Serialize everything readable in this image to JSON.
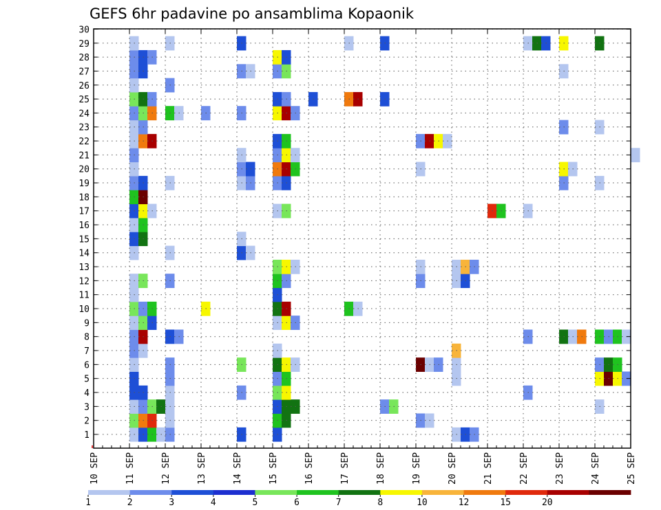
{
  "chart_data": {
    "type": "heatmap",
    "title": "GEFS 6hr padavine po ansamblima Kopaonik",
    "x_ticks": [
      "10 SEP",
      "11 SEP",
      "12 SEP",
      "13 SEP",
      "14 SEP",
      "15 SEP",
      "16 SEP",
      "17 SEP",
      "18 SEP",
      "19 SEP",
      "20 SEP",
      "21 SEP",
      "22 SEP",
      "23 SEP",
      "24 SEP",
      "25 SEP"
    ],
    "y_ticks": [
      "1",
      "2",
      "3",
      "4",
      "5",
      "6",
      "7",
      "8",
      "9",
      "10",
      "11",
      "12",
      "13",
      "14",
      "15",
      "16",
      "17",
      "18",
      "19",
      "20",
      "21",
      "22",
      "23",
      "24",
      "25",
      "26",
      "27",
      "28",
      "29",
      "30"
    ],
    "grid": true,
    "legend": {
      "placement": "bottom",
      "colors": [
        "#b4c6ef",
        "#6d8ceb",
        "#1e4fd6",
        "#1c2fd0",
        "#78e65a",
        "#1fc31f",
        "#127312",
        "#f7f700",
        "#f8b43a",
        "#f07a0e",
        "#e0290c",
        "#a80000",
        "#6b0000"
      ],
      "labels": [
        "1",
        "2",
        "3",
        "4",
        "5",
        "6",
        "7",
        "8",
        "10",
        "12",
        "15",
        "20"
      ]
    },
    "cells": [
      {
        "x": "11 SEP",
        "y": "1",
        "color": "#b4c6ef"
      },
      {
        "x": "11 SEP",
        "y": "1",
        "color": "#1e4fd6"
      },
      {
        "x": "11 SEP",
        "y": "1",
        "color": "#1fc31f"
      },
      {
        "x": "11 SEP",
        "y": "1",
        "color": "#b4c6ef"
      },
      {
        "x": "12 SEP",
        "y": "1",
        "color": "#6d8ceb"
      },
      {
        "x": "14 SEP",
        "y": "1",
        "color": "#1e4fd6"
      },
      {
        "x": "15 SEP",
        "y": "1",
        "color": "#1e4fd6"
      },
      {
        "x": "20 SEP",
        "y": "1",
        "color": "#b4c6ef"
      },
      {
        "x": "20 SEP",
        "y": "1",
        "color": "#1e4fd6"
      },
      {
        "x": "20 SEP",
        "y": "1",
        "color": "#6d8ceb"
      },
      {
        "x": "11 SEP",
        "y": "2",
        "color": "#78e65a"
      },
      {
        "x": "11 SEP",
        "y": "2",
        "color": "#f07a0e"
      },
      {
        "x": "11 SEP",
        "y": "2",
        "color": "#e0290c"
      },
      {
        "x": "12 SEP",
        "y": "2",
        "color": "#b4c6ef"
      },
      {
        "x": "15 SEP",
        "y": "2",
        "color": "#1fc31f"
      },
      {
        "x": "15 SEP",
        "y": "2",
        "color": "#127312"
      },
      {
        "x": "19 SEP",
        "y": "2",
        "color": "#6d8ceb"
      },
      {
        "x": "19 SEP",
        "y": "2",
        "color": "#b4c6ef"
      },
      {
        "x": "11 SEP",
        "y": "3",
        "color": "#b4c6ef"
      },
      {
        "x": "11 SEP",
        "y": "3",
        "color": "#6d8ceb"
      },
      {
        "x": "11 SEP",
        "y": "3",
        "color": "#78e65a"
      },
      {
        "x": "11 SEP",
        "y": "3",
        "color": "#127312"
      },
      {
        "x": "12 SEP",
        "y": "3",
        "color": "#b4c6ef"
      },
      {
        "x": "15 SEP",
        "y": "3",
        "color": "#1e4fd6"
      },
      {
        "x": "15 SEP",
        "y": "3",
        "color": "#127312"
      },
      {
        "x": "15 SEP",
        "y": "3",
        "color": "#127312"
      },
      {
        "x": "18 SEP",
        "y": "3",
        "color": "#6d8ceb"
      },
      {
        "x": "18 SEP",
        "y": "3",
        "color": "#78e65a"
      },
      {
        "x": "24 SEP",
        "y": "3",
        "color": "#b4c6ef"
      },
      {
        "x": "11 SEP",
        "y": "4",
        "color": "#1e4fd6"
      },
      {
        "x": "11 SEP",
        "y": "4",
        "color": "#1e4fd6"
      },
      {
        "x": "12 SEP",
        "y": "4",
        "color": "#b4c6ef"
      },
      {
        "x": "14 SEP",
        "y": "4",
        "color": "#6d8ceb"
      },
      {
        "x": "15 SEP",
        "y": "4",
        "color": "#78e65a"
      },
      {
        "x": "15 SEP",
        "y": "4",
        "color": "#f7f700"
      },
      {
        "x": "22 SEP",
        "y": "4",
        "color": "#6d8ceb"
      },
      {
        "x": "11 SEP",
        "y": "5",
        "color": "#1e4fd6"
      },
      {
        "x": "12 SEP",
        "y": "5",
        "color": "#6d8ceb"
      },
      {
        "x": "15 SEP",
        "y": "5",
        "color": "#6d8ceb"
      },
      {
        "x": "15 SEP",
        "y": "5",
        "color": "#1fc31f"
      },
      {
        "x": "20 SEP",
        "y": "5",
        "color": "#b4c6ef"
      },
      {
        "x": "24 SEP",
        "y": "5",
        "color": "#f7f700"
      },
      {
        "x": "24 SEP",
        "y": "5",
        "color": "#6b0000"
      },
      {
        "x": "24 SEP",
        "y": "5",
        "color": "#f7f700"
      },
      {
        "x": "24 SEP",
        "y": "5",
        "color": "#6d8ceb"
      },
      {
        "x": "11 SEP",
        "y": "6",
        "color": "#b4c6ef"
      },
      {
        "x": "12 SEP",
        "y": "6",
        "color": "#6d8ceb"
      },
      {
        "x": "14 SEP",
        "y": "6",
        "color": "#78e65a"
      },
      {
        "x": "15 SEP",
        "y": "6",
        "color": "#127312"
      },
      {
        "x": "15 SEP",
        "y": "6",
        "color": "#f7f700"
      },
      {
        "x": "15 SEP",
        "y": "6",
        "color": "#b4c6ef"
      },
      {
        "x": "19 SEP",
        "y": "6",
        "color": "#6b0000"
      },
      {
        "x": "19 SEP",
        "y": "6",
        "color": "#b4c6ef"
      },
      {
        "x": "19 SEP",
        "y": "6",
        "color": "#6d8ceb"
      },
      {
        "x": "20 SEP",
        "y": "6",
        "color": "#b4c6ef"
      },
      {
        "x": "24 SEP",
        "y": "6",
        "color": "#6d8ceb"
      },
      {
        "x": "24 SEP",
        "y": "6",
        "color": "#127312"
      },
      {
        "x": "24 SEP",
        "y": "6",
        "color": "#1fc31f"
      },
      {
        "x": "11 SEP",
        "y": "7",
        "color": "#6d8ceb"
      },
      {
        "x": "11 SEP",
        "y": "7",
        "color": "#b4c6ef"
      },
      {
        "x": "15 SEP",
        "y": "7",
        "color": "#b4c6ef"
      },
      {
        "x": "20 SEP",
        "y": "7",
        "color": "#f8b43a"
      },
      {
        "x": "11 SEP",
        "y": "8",
        "color": "#6d8ceb"
      },
      {
        "x": "11 SEP",
        "y": "8",
        "color": "#a80000"
      },
      {
        "x": "12 SEP",
        "y": "8",
        "color": "#1e4fd6"
      },
      {
        "x": "12 SEP",
        "y": "8",
        "color": "#6d8ceb"
      },
      {
        "x": "22 SEP",
        "y": "8",
        "color": "#6d8ceb"
      },
      {
        "x": "23 SEP",
        "y": "8",
        "color": "#127312"
      },
      {
        "x": "23 SEP",
        "y": "8",
        "color": "#b4c6ef"
      },
      {
        "x": "23 SEP",
        "y": "8",
        "color": "#f07a0e"
      },
      {
        "x": "24 SEP",
        "y": "8",
        "color": "#1fc31f"
      },
      {
        "x": "24 SEP",
        "y": "8",
        "color": "#6d8ceb"
      },
      {
        "x": "24 SEP",
        "y": "8",
        "color": "#1fc31f"
      },
      {
        "x": "24 SEP",
        "y": "8",
        "color": "#b4c6ef"
      },
      {
        "x": "11 SEP",
        "y": "9",
        "color": "#b4c6ef"
      },
      {
        "x": "11 SEP",
        "y": "9",
        "color": "#78e65a"
      },
      {
        "x": "11 SEP",
        "y": "9",
        "color": "#1e4fd6"
      },
      {
        "x": "15 SEP",
        "y": "9",
        "color": "#b4c6ef"
      },
      {
        "x": "15 SEP",
        "y": "9",
        "color": "#f7f700"
      },
      {
        "x": "15 SEP",
        "y": "9",
        "color": "#6d8ceb"
      },
      {
        "x": "11 SEP",
        "y": "10",
        "color": "#78e65a"
      },
      {
        "x": "11 SEP",
        "y": "10",
        "color": "#6d8ceb"
      },
      {
        "x": "11 SEP",
        "y": "10",
        "color": "#1fc31f"
      },
      {
        "x": "13 SEP",
        "y": "10",
        "color": "#f7f700"
      },
      {
        "x": "15 SEP",
        "y": "10",
        "color": "#127312"
      },
      {
        "x": "15 SEP",
        "y": "10",
        "color": "#a80000"
      },
      {
        "x": "17 SEP",
        "y": "10",
        "color": "#1fc31f"
      },
      {
        "x": "17 SEP",
        "y": "10",
        "color": "#b4c6ef"
      },
      {
        "x": "11 SEP",
        "y": "11",
        "color": "#b4c6ef"
      },
      {
        "x": "15 SEP",
        "y": "11",
        "color": "#1e4fd6"
      },
      {
        "x": "11 SEP",
        "y": "12",
        "color": "#b4c6ef"
      },
      {
        "x": "11 SEP",
        "y": "12",
        "color": "#78e65a"
      },
      {
        "x": "12 SEP",
        "y": "12",
        "color": "#6d8ceb"
      },
      {
        "x": "15 SEP",
        "y": "12",
        "color": "#1fc31f"
      },
      {
        "x": "15 SEP",
        "y": "12",
        "color": "#6d8ceb"
      },
      {
        "x": "19 SEP",
        "y": "12",
        "color": "#6d8ceb"
      },
      {
        "x": "20 SEP",
        "y": "12",
        "color": "#b4c6ef"
      },
      {
        "x": "20 SEP",
        "y": "12",
        "color": "#1e4fd6"
      },
      {
        "x": "15 SEP",
        "y": "13",
        "color": "#78e65a"
      },
      {
        "x": "15 SEP",
        "y": "13",
        "color": "#f7f700"
      },
      {
        "x": "15 SEP",
        "y": "13",
        "color": "#b4c6ef"
      },
      {
        "x": "19 SEP",
        "y": "13",
        "color": "#b4c6ef"
      },
      {
        "x": "20 SEP",
        "y": "13",
        "color": "#b4c6ef"
      },
      {
        "x": "20 SEP",
        "y": "13",
        "color": "#f8b43a"
      },
      {
        "x": "20 SEP",
        "y": "13",
        "color": "#6d8ceb"
      },
      {
        "x": "11 SEP",
        "y": "14",
        "color": "#b4c6ef"
      },
      {
        "x": "12 SEP",
        "y": "14",
        "color": "#b4c6ef"
      },
      {
        "x": "14 SEP",
        "y": "14",
        "color": "#1e4fd6"
      },
      {
        "x": "14 SEP",
        "y": "14",
        "color": "#b4c6ef"
      },
      {
        "x": "11 SEP",
        "y": "15",
        "color": "#1e4fd6"
      },
      {
        "x": "11 SEP",
        "y": "15",
        "color": "#127312"
      },
      {
        "x": "14 SEP",
        "y": "15",
        "color": "#b4c6ef"
      },
      {
        "x": "11 SEP",
        "y": "16",
        "color": "#b4c6ef"
      },
      {
        "x": "11 SEP",
        "y": "16",
        "color": "#1fc31f"
      },
      {
        "x": "11 SEP",
        "y": "17",
        "color": "#1e4fd6"
      },
      {
        "x": "11 SEP",
        "y": "17",
        "color": "#f7f700"
      },
      {
        "x": "11 SEP",
        "y": "17",
        "color": "#b4c6ef"
      },
      {
        "x": "15 SEP",
        "y": "17",
        "color": "#b4c6ef"
      },
      {
        "x": "15 SEP",
        "y": "17",
        "color": "#78e65a"
      },
      {
        "x": "21 SEP",
        "y": "17",
        "color": "#e0290c"
      },
      {
        "x": "21 SEP",
        "y": "17",
        "color": "#1fc31f"
      },
      {
        "x": "22 SEP",
        "y": "17",
        "color": "#b4c6ef"
      },
      {
        "x": "11 SEP",
        "y": "18",
        "color": "#1fc31f"
      },
      {
        "x": "11 SEP",
        "y": "18",
        "color": "#6b0000"
      },
      {
        "x": "11 SEP",
        "y": "19",
        "color": "#6d8ceb"
      },
      {
        "x": "11 SEP",
        "y": "19",
        "color": "#1e4fd6"
      },
      {
        "x": "12 SEP",
        "y": "19",
        "color": "#b4c6ef"
      },
      {
        "x": "14 SEP",
        "y": "19",
        "color": "#b4c6ef"
      },
      {
        "x": "14 SEP",
        "y": "19",
        "color": "#6d8ceb"
      },
      {
        "x": "15 SEP",
        "y": "19",
        "color": "#6d8ceb"
      },
      {
        "x": "15 SEP",
        "y": "19",
        "color": "#1e4fd6"
      },
      {
        "x": "23 SEP",
        "y": "19",
        "color": "#6d8ceb"
      },
      {
        "x": "24 SEP",
        "y": "19",
        "color": "#b4c6ef"
      },
      {
        "x": "11 SEP",
        "y": "20",
        "color": "#b4c6ef"
      },
      {
        "x": "14 SEP",
        "y": "20",
        "color": "#6d8ceb"
      },
      {
        "x": "14 SEP",
        "y": "20",
        "color": "#1e4fd6"
      },
      {
        "x": "15 SEP",
        "y": "20",
        "color": "#f07a0e"
      },
      {
        "x": "15 SEP",
        "y": "20",
        "color": "#a80000"
      },
      {
        "x": "15 SEP",
        "y": "20",
        "color": "#1fc31f"
      },
      {
        "x": "19 SEP",
        "y": "20",
        "color": "#b4c6ef"
      },
      {
        "x": "23 SEP",
        "y": "20",
        "color": "#f7f700"
      },
      {
        "x": "23 SEP",
        "y": "20",
        "color": "#b4c6ef"
      },
      {
        "x": "11 SEP",
        "y": "21",
        "color": "#6d8ceb"
      },
      {
        "x": "14 SEP",
        "y": "21",
        "color": "#b4c6ef"
      },
      {
        "x": "15 SEP",
        "y": "21",
        "color": "#6d8ceb"
      },
      {
        "x": "15 SEP",
        "y": "21",
        "color": "#f7f700"
      },
      {
        "x": "15 SEP",
        "y": "21",
        "color": "#b4c6ef"
      },
      {
        "x": "25 SEP",
        "y": "21",
        "color": "#b4c6ef"
      },
      {
        "x": "11 SEP",
        "y": "22",
        "color": "#b4c6ef"
      },
      {
        "x": "11 SEP",
        "y": "22",
        "color": "#f07a0e"
      },
      {
        "x": "11 SEP",
        "y": "22",
        "color": "#a80000"
      },
      {
        "x": "15 SEP",
        "y": "22",
        "color": "#1e4fd6"
      },
      {
        "x": "15 SEP",
        "y": "22",
        "color": "#1fc31f"
      },
      {
        "x": "19 SEP",
        "y": "22",
        "color": "#6d8ceb"
      },
      {
        "x": "19 SEP",
        "y": "22",
        "color": "#a80000"
      },
      {
        "x": "19 SEP",
        "y": "22",
        "color": "#f7f700"
      },
      {
        "x": "19 SEP",
        "y": "22",
        "color": "#b4c6ef"
      },
      {
        "x": "11 SEP",
        "y": "23",
        "color": "#b4c6ef"
      },
      {
        "x": "11 SEP",
        "y": "23",
        "color": "#6d8ceb"
      },
      {
        "x": "23 SEP",
        "y": "23",
        "color": "#6d8ceb"
      },
      {
        "x": "24 SEP",
        "y": "23",
        "color": "#b4c6ef"
      },
      {
        "x": "11 SEP",
        "y": "24",
        "color": "#6d8ceb"
      },
      {
        "x": "11 SEP",
        "y": "24",
        "color": "#78e65a"
      },
      {
        "x": "11 SEP",
        "y": "24",
        "color": "#f07a0e"
      },
      {
        "x": "12 SEP",
        "y": "24",
        "color": "#1fc31f"
      },
      {
        "x": "12 SEP",
        "y": "24",
        "color": "#b4c6ef"
      },
      {
        "x": "13 SEP",
        "y": "24",
        "color": "#6d8ceb"
      },
      {
        "x": "14 SEP",
        "y": "24",
        "color": "#6d8ceb"
      },
      {
        "x": "15 SEP",
        "y": "24",
        "color": "#f7f700"
      },
      {
        "x": "15 SEP",
        "y": "24",
        "color": "#a80000"
      },
      {
        "x": "15 SEP",
        "y": "24",
        "color": "#6d8ceb"
      },
      {
        "x": "11 SEP",
        "y": "25",
        "color": "#78e65a"
      },
      {
        "x": "11 SEP",
        "y": "25",
        "color": "#127312"
      },
      {
        "x": "11 SEP",
        "y": "25",
        "color": "#6d8ceb"
      },
      {
        "x": "15 SEP",
        "y": "25",
        "color": "#1e4fd6"
      },
      {
        "x": "15 SEP",
        "y": "25",
        "color": "#6d8ceb"
      },
      {
        "x": "16 SEP",
        "y": "25",
        "color": "#1e4fd6"
      },
      {
        "x": "17 SEP",
        "y": "25",
        "color": "#f07a0e"
      },
      {
        "x": "17 SEP",
        "y": "25",
        "color": "#a80000"
      },
      {
        "x": "18 SEP",
        "y": "25",
        "color": "#1e4fd6"
      },
      {
        "x": "11 SEP",
        "y": "26",
        "color": "#b4c6ef"
      },
      {
        "x": "12 SEP",
        "y": "26",
        "color": "#6d8ceb"
      },
      {
        "x": "11 SEP",
        "y": "27",
        "color": "#6d8ceb"
      },
      {
        "x": "11 SEP",
        "y": "27",
        "color": "#1e4fd6"
      },
      {
        "x": "14 SEP",
        "y": "27",
        "color": "#6d8ceb"
      },
      {
        "x": "14 SEP",
        "y": "27",
        "color": "#b4c6ef"
      },
      {
        "x": "15 SEP",
        "y": "27",
        "color": "#6d8ceb"
      },
      {
        "x": "15 SEP",
        "y": "27",
        "color": "#78e65a"
      },
      {
        "x": "23 SEP",
        "y": "27",
        "color": "#b4c6ef"
      },
      {
        "x": "11 SEP",
        "y": "28",
        "color": "#6d8ceb"
      },
      {
        "x": "11 SEP",
        "y": "28",
        "color": "#1e4fd6"
      },
      {
        "x": "11 SEP",
        "y": "28",
        "color": "#6d8ceb"
      },
      {
        "x": "15 SEP",
        "y": "28",
        "color": "#f7f700"
      },
      {
        "x": "15 SEP",
        "y": "28",
        "color": "#1e4fd6"
      },
      {
        "x": "11 SEP",
        "y": "29",
        "color": "#b4c6ef"
      },
      {
        "x": "12 SEP",
        "y": "29",
        "color": "#b4c6ef"
      },
      {
        "x": "14 SEP",
        "y": "29",
        "color": "#1e4fd6"
      },
      {
        "x": "17 SEP",
        "y": "29",
        "color": "#b4c6ef"
      },
      {
        "x": "18 SEP",
        "y": "29",
        "color": "#1e4fd6"
      },
      {
        "x": "22 SEP",
        "y": "29",
        "color": "#b4c6ef"
      },
      {
        "x": "22 SEP",
        "y": "29",
        "color": "#127312"
      },
      {
        "x": "22 SEP",
        "y": "29",
        "color": "#1e4fd6"
      },
      {
        "x": "23 SEP",
        "y": "29",
        "color": "#f7f700"
      },
      {
        "x": "24 SEP",
        "y": "29",
        "color": "#127312"
      }
    ]
  }
}
